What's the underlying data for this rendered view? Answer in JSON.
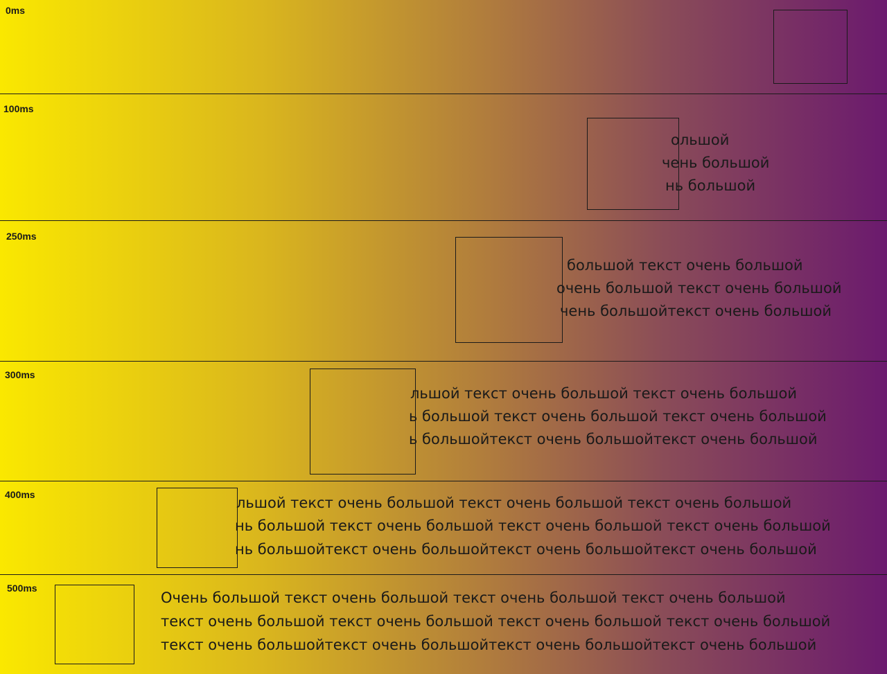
{
  "frames": [
    {
      "label": "0ms",
      "lines": [
        "",
        "",
        ""
      ]
    },
    {
      "label": "100ms",
      "lines": [
        "ольшой",
        "чень большой",
        "нь большой"
      ]
    },
    {
      "label": "250ms",
      "lines": [
        "большой текст очень большой",
        "очень большой текст очень большой",
        "чень большойтекст очень большой"
      ]
    },
    {
      "label": "300ms",
      "lines": [
        "льшой текст очень большой текст очень большой",
        "ь большой текст очень большой текст очень большой",
        "ь большойтекст очень большойтекст очень большой"
      ]
    },
    {
      "label": "400ms",
      "lines": [
        "льшой текст очень большой текст очень большой текст очень большой",
        "нь большой текст очень большой текст очень большой текст очень большой",
        "нь большойтекст очень большойтекст очень большойтекст очень большой"
      ]
    },
    {
      "label": "500ms",
      "lines": [
        "Очень большой текст очень большой текст очень большой текст очень большой",
        "текст очень большой текст очень большой текст очень большой текст очень большой",
        "текст очень большойтекст очень большойтекст очень большойтекст очень большой"
      ]
    }
  ],
  "colors": {
    "gradient_start": "#fae800",
    "gradient_end": "#6b1a6e",
    "ink": "#1a1a1a"
  }
}
